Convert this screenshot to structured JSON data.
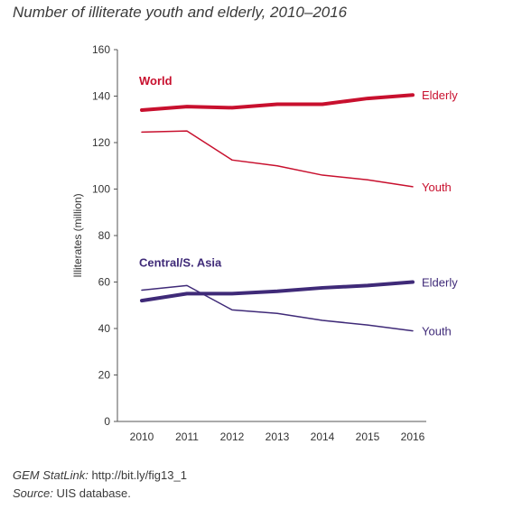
{
  "chart_data": {
    "type": "line",
    "title": "Number of illiterate youth and elderly, 2010–2016",
    "ylabel": "Illiterates (million)",
    "xlabel": "",
    "x": [
      "2010",
      "2011",
      "2012",
      "2013",
      "2014",
      "2015",
      "2016"
    ],
    "ylim": [
      0,
      160
    ],
    "yticks": [
      "0",
      "20",
      "40",
      "60",
      "80",
      "100",
      "120",
      "140",
      "160"
    ],
    "grid": false,
    "groups": [
      {
        "name": "World",
        "color": "#c8102e",
        "series": [
          {
            "name": "Elderly",
            "values": [
              134,
              135.5,
              135,
              136.5,
              136.5,
              139,
              140.5
            ],
            "emphasis": "thick"
          },
          {
            "name": "Youth",
            "values": [
              124.5,
              125,
              112.5,
              110,
              106,
              104,
              101
            ],
            "emphasis": "thin"
          }
        ]
      },
      {
        "name": "Central/S. Asia",
        "color": "#3f2a78",
        "series": [
          {
            "name": "Elderly",
            "values": [
              52,
              55,
              55,
              56,
              57.5,
              58.5,
              60
            ],
            "emphasis": "thick"
          },
          {
            "name": "Youth",
            "values": [
              56.5,
              58.5,
              48,
              46.5,
              43.5,
              41.5,
              39
            ],
            "emphasis": "thin"
          }
        ]
      }
    ]
  },
  "footer": {
    "statlink_label": "GEM StatLink:",
    "statlink_url": "http://bit.ly/fig13_1",
    "source_label": "Source:",
    "source_text": "UIS database."
  }
}
